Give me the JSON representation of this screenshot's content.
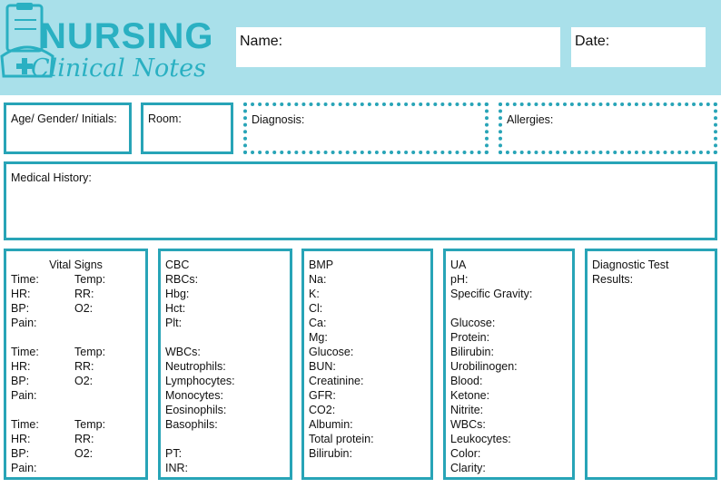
{
  "header": {
    "logo": {
      "title": "NURSING",
      "subtitle": "Clinical Notes"
    },
    "fields": [
      "Name:",
      "Date:"
    ]
  },
  "info_fields": [
    "Age/ Gender/ Initials:",
    "Room:",
    "Diagnosis:",
    "Allergies:"
  ],
  "medical_history": "Medical History:",
  "sections": [
    {
      "title": "Vital Signs",
      "groups": [
        [
          [
            "Time:",
            "Temp:"
          ],
          [
            "HR:",
            "RR:"
          ],
          [
            "BP:",
            "O2:"
          ],
          [
            "Pain:"
          ]
        ],
        [
          [
            "Time:",
            "Temp:"
          ],
          [
            "HR:",
            "RR:"
          ],
          [
            "BP:",
            "O2:"
          ],
          [
            "Pain:"
          ]
        ],
        [
          [
            "Time:",
            "Temp:"
          ],
          [
            "HR:",
            "RR:"
          ],
          [
            "BP:",
            "O2:"
          ],
          [
            "Pain:"
          ]
        ]
      ]
    },
    {
      "title": "CBC",
      "groups": [
        [
          "RBCs:",
          "Hbg:",
          "Hct:",
          "Plt:"
        ],
        [
          "WBCs:",
          "Neutrophils:",
          "Lymphocytes:",
          "Monocytes:",
          "Eosinophils:",
          "Basophils:"
        ],
        [
          "PT:",
          "INR:"
        ]
      ]
    },
    {
      "title": "BMP",
      "groups": [
        [
          "Na:",
          "K:",
          "Cl:",
          "Ca:",
          "Mg:",
          "Glucose:",
          "BUN:",
          "Creatinine:",
          "GFR:",
          "CO2:",
          "Albumin:",
          "Total protein:",
          "Bilirubin:"
        ]
      ]
    },
    {
      "title": "UA",
      "groups": [
        [
          "pH:",
          "Specific Gravity:"
        ],
        [
          "Glucose:",
          "Protein:",
          "Bilirubin:",
          "Urobilinogen:",
          "Blood:",
          "Ketone:",
          "Nitrite:",
          "WBCs:",
          "Leukocytes:",
          "Color:",
          "Clarity:"
        ]
      ]
    },
    {
      "title": "Diagnostic Test",
      "groups": [
        [
          "Results:"
        ]
      ]
    }
  ]
}
